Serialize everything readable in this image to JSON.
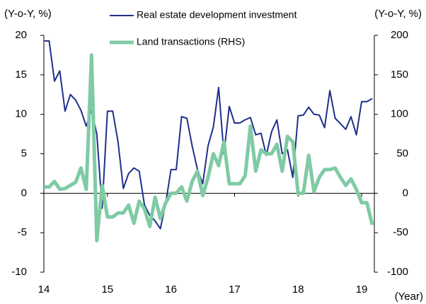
{
  "chart_data": {
    "type": "line",
    "y_label": "(Y-o-Y, %)",
    "y2_label": "(Y-o-Y, %)",
    "x_label": "(Year)",
    "x": [
      2014,
      2014.083,
      2014.167,
      2014.25,
      2014.333,
      2014.417,
      2014.5,
      2014.583,
      2014.667,
      2014.75,
      2014.833,
      2014.917,
      2015,
      2015.083,
      2015.167,
      2015.25,
      2015.333,
      2015.417,
      2015.5,
      2015.583,
      2015.667,
      2015.75,
      2015.833,
      2015.917,
      2016,
      2016.083,
      2016.167,
      2016.25,
      2016.333,
      2016.417,
      2016.5,
      2016.583,
      2016.667,
      2016.75,
      2016.833,
      2016.917,
      2017,
      2017.083,
      2017.167,
      2017.25,
      2017.333,
      2017.417,
      2017.5,
      2017.583,
      2017.667,
      2017.75,
      2017.833,
      2017.917,
      2018,
      2018.083,
      2018.167,
      2018.25,
      2018.333,
      2018.417,
      2018.5,
      2018.583,
      2018.667,
      2018.75,
      2018.833,
      2018.917,
      2019,
      2019.083,
      2019.167
    ],
    "series": [
      {
        "name": "Real estate development investment",
        "color": "#1f2f8c",
        "width": 2,
        "values": [
          19.3,
          19.3,
          14.2,
          15.5,
          10.4,
          12.5,
          11.8,
          10.5,
          8.5,
          10.5,
          7.5,
          -1.9,
          10.4,
          10.4,
          6.5,
          0.6,
          2.5,
          3.2,
          2.8,
          -1.5,
          -2.8,
          -3.5,
          -4.5,
          -1.3,
          3,
          3,
          9.7,
          9.5,
          6,
          3,
          1.2,
          6,
          8.4,
          13.4,
          5,
          11,
          8.9,
          8.9,
          9.3,
          9.6,
          7.4,
          7.6,
          4.8,
          7.8,
          9.3,
          5,
          5.5,
          2,
          9.8,
          9.9,
          10.9,
          10,
          9.9,
          8.3,
          13,
          9.5,
          8.8,
          8.1,
          9.7,
          7.4,
          11.6,
          11.6,
          12
        ]
      },
      {
        "name": "Land transactions (RHS)",
        "color": "#7fcba4",
        "width": 5,
        "axis": "y2",
        "values": [
          8,
          8,
          15,
          5,
          6,
          10,
          14,
          32,
          5,
          175,
          -60,
          10,
          -30,
          -30,
          -25,
          -25,
          -15,
          -38,
          -10,
          -20,
          -42,
          -5,
          -32,
          -12,
          0,
          0,
          8,
          -10,
          15,
          28,
          -3,
          20,
          50,
          35,
          65,
          12,
          12,
          12,
          22,
          85,
          28,
          55,
          50,
          50,
          62,
          28,
          72,
          65,
          0,
          0,
          48,
          2,
          20,
          30,
          30,
          32,
          20,
          10,
          18,
          5,
          -12,
          -12,
          -40
        ]
      }
    ],
    "xlim": [
      2014,
      2019.2
    ],
    "xticks": [
      {
        "value": 2014,
        "label": "14"
      },
      {
        "value": 2015,
        "label": "15"
      },
      {
        "value": 2016,
        "label": "16"
      },
      {
        "value": 2017,
        "label": "17"
      },
      {
        "value": 2018,
        "label": "18"
      },
      {
        "value": 2019,
        "label": "19"
      }
    ],
    "ylim": [
      -10,
      20
    ],
    "yticks": [
      -10,
      -5,
      0,
      5,
      10,
      15,
      20
    ],
    "y2lim": [
      -100,
      200
    ],
    "y2ticks": [
      -100,
      -50,
      0,
      50,
      100,
      150,
      200
    ],
    "grid": false
  }
}
